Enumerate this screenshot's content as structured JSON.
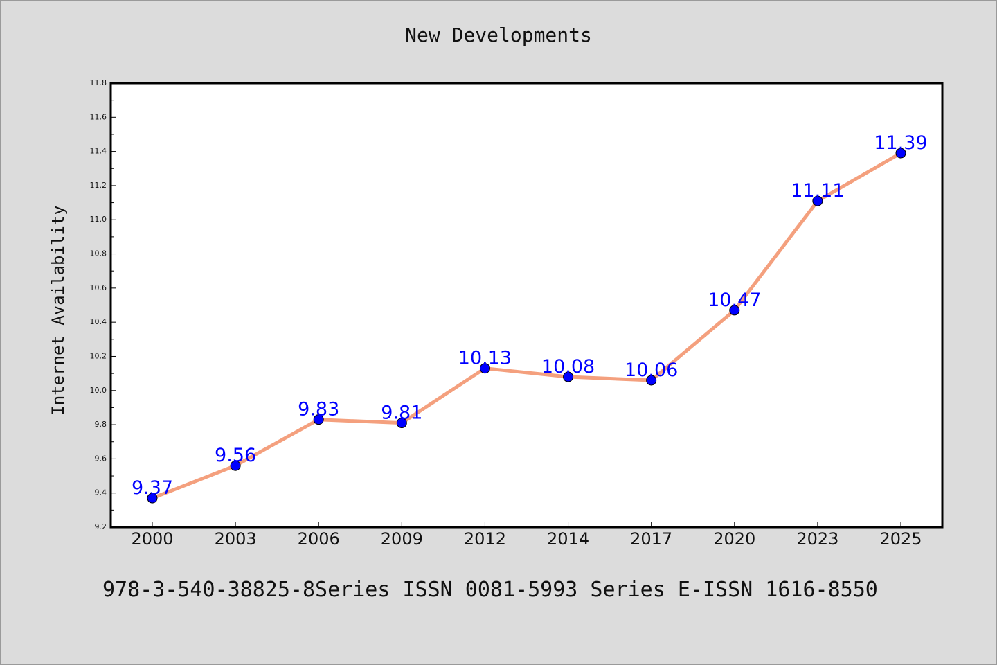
{
  "chart_data": {
    "type": "line",
    "title": "New Developments",
    "xlabel": "",
    "ylabel": "Internet Availability",
    "x": [
      "2000",
      "2003",
      "2006",
      "2009",
      "2012",
      "2014",
      "2017",
      "2020",
      "2023",
      "2025"
    ],
    "series": [
      {
        "values": [
          9.37,
          9.56,
          9.83,
          9.81,
          10.13,
          10.08,
          10.06,
          10.47,
          11.11,
          11.39
        ],
        "line_color": "#f4a07e",
        "marker_color": "#0000ff"
      }
    ],
    "data_labels": [
      "9.37",
      "9.56",
      "9.83",
      "9.81",
      "10.13",
      "10.08",
      "10.06",
      "10.47",
      "11.11",
      "11.39"
    ],
    "ylim": [
      9.2,
      11.8
    ],
    "yticks": [
      "9.2",
      "9.4",
      "9.6",
      "9.8",
      "10.0",
      "10.2",
      "10.4",
      "10.6",
      "10.8",
      "11.0",
      "11.2",
      "11.4",
      "11.6",
      "11.8"
    ],
    "grid": false,
    "legend": "none"
  },
  "footer": {
    "text": "978-3-540-38825-8Series ISSN 0081-5993 Series E-ISSN 1616-8550"
  }
}
